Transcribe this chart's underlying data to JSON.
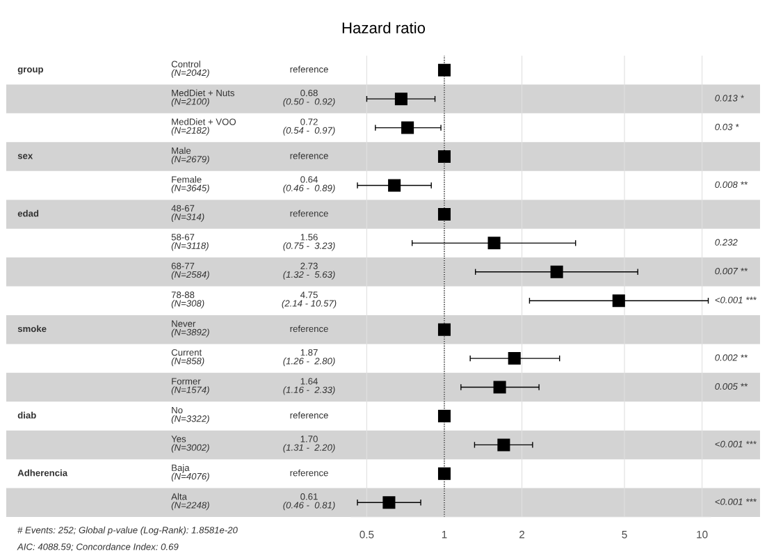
{
  "chart_data": [
    {
      "type": "other",
      "cell_labels": [
        [
          "group",
          "Control\n(N=2042)",
          "reference"
        ],
        [
          null,
          "MedDiet + Nuts\n(N=2100)",
          "0.68\n(0.50 -  0.92)"
        ],
        [
          null,
          "MedDiet + VOO\n(N=2182)",
          "0.72\n(0.54 -  0.97)"
        ],
        [
          "sex",
          "Male\n(N=2679)",
          "reference"
        ],
        [
          null,
          "Female\n(N=3645)",
          "0.64\n(0.46 -  0.89)"
        ],
        [
          "edad",
          "48-67\n(N=314)",
          "reference"
        ],
        [
          null,
          "58-67\n(N=3118)",
          "1.56\n(0.75 -  3.23)"
        ],
        [
          null,
          "68-77\n(N=2584)",
          "2.73\n(1.32 -  5.63)"
        ],
        [
          null,
          "78-88\n(N=308)",
          "4.75\n(2.14 - 10.57)"
        ],
        [
          "smoke",
          "Never\n(N=3892)",
          "reference"
        ],
        [
          null,
          "Current\n(N=858)",
          "1.87\n(1.26 -  2.80)"
        ],
        [
          null,
          "Former\n(N=1574)",
          "1.64\n(1.16 -  2.33)"
        ],
        [
          "diab",
          "No\n(N=3322)",
          "reference"
        ],
        [
          null,
          "Yes\n(N=3002)",
          "1.70\n(1.31 -  2.20)"
        ],
        [
          "Adherencia",
          "Baja\n(N=4076)",
          "reference"
        ],
        [
          null,
          "Alta\n(N=2248)",
          "0.61\n(0.46 -  0.81)"
        ]
      ],
      "annotations": [
        "# Events: 252; Global p-value (Log-Rank): 1.8581e-20",
        "AIC: 4088.59; Concordance Index: 0.69"
      ]
    },
    {
      "type": "scatter",
      "orientation": "horizontal",
      "title": "Hazard ratio",
      "categories": [
        null,
        null,
        null,
        null,
        null,
        null,
        null,
        null,
        null,
        null,
        null,
        null,
        null,
        null,
        null,
        null
      ],
      "values": [
        1,
        0.68,
        0.72,
        1,
        0.64,
        1,
        1.56,
        2.73,
        4.75,
        1,
        1.87,
        1.64,
        1,
        1.7,
        1,
        0.61
      ],
      "errors": [
        null,
        [
          0.5,
          0.92
        ],
        [
          0.54,
          0.97
        ],
        null,
        [
          0.46,
          0.89
        ],
        null,
        [
          0.75,
          3.23
        ],
        [
          1.32,
          5.63
        ],
        [
          2.14,
          10.57
        ],
        null,
        [
          1.26,
          2.8
        ],
        [
          1.16,
          2.33
        ],
        null,
        [
          1.31,
          2.2
        ],
        null,
        [
          0.46,
          0.81
        ]
      ],
      "color": "#000000",
      "marker": "square",
      "log": "x",
      "xlim": [
        0.435,
        10.8
      ],
      "xticks": [
        0.5,
        1,
        2,
        5,
        10
      ],
      "grid": "x",
      "tick_labels": "x",
      "ref_lines": [
        {
          "axis": "x",
          "value": 1,
          "line_style": "dotted",
          "color": "#000000"
        }
      ]
    },
    {
      "type": "other",
      "cell_labels": [
        [
          null
        ],
        [
          "0.013 *"
        ],
        [
          "0.03 *"
        ],
        [
          null
        ],
        [
          "0.008 **"
        ],
        [
          null
        ],
        [
          "0.232"
        ],
        [
          "0.007 **"
        ],
        [
          "<0.001 ***"
        ],
        [
          null
        ],
        [
          "0.002 **"
        ],
        [
          "0.005 **"
        ],
        [
          null
        ],
        [
          "<0.001 ***"
        ],
        [
          null
        ],
        [
          "<0.001 ***"
        ]
      ]
    }
  ]
}
